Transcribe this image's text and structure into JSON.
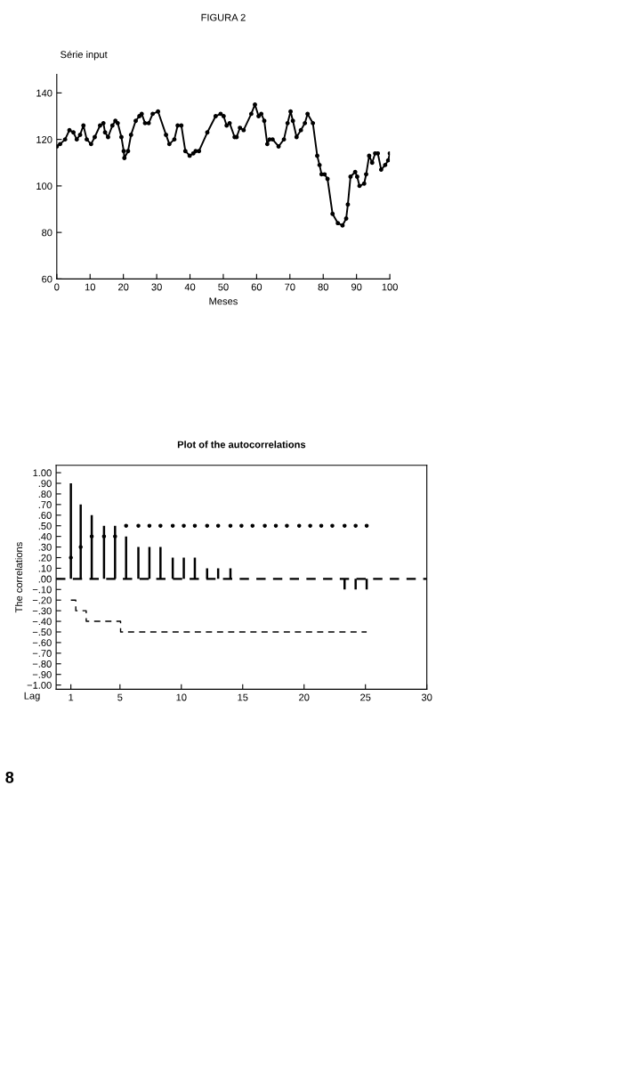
{
  "chart_data": [
    {
      "type": "line",
      "title": "FIGURA 2",
      "ylabel": "Série input",
      "xlabel": "Meses",
      "marker": "circle",
      "line_style": "solid",
      "grid": false,
      "legend": false,
      "xlim": [
        0,
        100
      ],
      "ylim": [
        60,
        148
      ],
      "xticks": [
        0,
        10,
        20,
        30,
        40,
        50,
        60,
        70,
        80,
        90,
        100
      ],
      "yticks": [
        60,
        80,
        100,
        120,
        140
      ],
      "series": [
        {
          "color": "#000000",
          "x": [
            0,
            1,
            2.5,
            3.8,
            5,
            6,
            7,
            8,
            9,
            10.3,
            11.4,
            13,
            14,
            14.5,
            15.4,
            16.7,
            17.6,
            18.3,
            19.4,
            20.1,
            20.3,
            21.4,
            22.3,
            23.7,
            24.8,
            25.5,
            26.5,
            27.6,
            28.8,
            30.4,
            32.8,
            33.8,
            35.3,
            36.3,
            37.4,
            38.6,
            39.9,
            41,
            41.7,
            42.7,
            45.2,
            47.7,
            49.2,
            50.1,
            51,
            51.9,
            53.4,
            54,
            55,
            56.1,
            58.4,
            59.5,
            60.6,
            61.4,
            62.3,
            63.2,
            63.9,
            64.8,
            66.6,
            68.2,
            69.3,
            70.2,
            70.9,
            72,
            73.3,
            74.5,
            75.3,
            76.9,
            78.2,
            78.9,
            79.5,
            80.4,
            81.3,
            82.8,
            84.4,
            85.8,
            86.9,
            87.4,
            88.2,
            89.6,
            90.2,
            90.9,
            92.3,
            92.9,
            93.8,
            94.7,
            95.6,
            96.4,
            97.4,
            98.6,
            99.5,
            100
          ],
          "values": [
            117,
            118,
            120,
            124,
            123,
            120,
            122,
            126,
            120,
            118,
            121,
            126,
            127,
            123,
            121,
            126,
            128,
            127,
            121,
            115,
            112,
            115,
            122,
            128,
            130,
            131,
            127,
            127,
            131,
            132,
            122,
            118,
            120,
            126,
            126,
            115,
            113,
            114,
            115,
            115,
            123,
            130,
            131,
            130,
            126,
            127,
            121,
            121,
            125,
            124,
            131,
            135,
            130,
            131,
            128,
            118,
            120,
            120,
            117,
            120,
            127,
            132,
            128,
            121,
            124,
            127,
            131,
            127,
            113,
            109,
            105,
            105,
            103,
            88,
            84,
            83,
            86,
            92,
            104,
            106,
            104,
            100,
            101,
            105,
            113,
            110,
            114,
            114,
            107,
            109,
            111,
            114
          ]
        }
      ]
    },
    {
      "type": "bar",
      "title": "Plot of the autocorrelations",
      "ylabel": "The correlations",
      "xlabel": "Lag",
      "grid": false,
      "legend": false,
      "xlim": [
        -0.2,
        30
      ],
      "ylim": [
        -1.04,
        1.07
      ],
      "xticks": [
        1,
        5,
        10,
        15,
        20,
        25,
        30
      ],
      "yticks": [
        {
          "value": 1.0,
          "label": "1.00"
        },
        {
          "value": 0.9,
          "label": ".90"
        },
        {
          "value": 0.8,
          "label": ".80"
        },
        {
          "value": 0.7,
          "label": ".70"
        },
        {
          "value": 0.6,
          "label": ".60"
        },
        {
          "value": 0.5,
          "label": ".50"
        },
        {
          "value": 0.4,
          "label": ".40"
        },
        {
          "value": 0.3,
          "label": ".30"
        },
        {
          "value": 0.2,
          "label": ".20"
        },
        {
          "value": 0.1,
          "label": ".10"
        },
        {
          "value": 0.0,
          "label": ".00"
        },
        {
          "value": -0.1,
          "label": "−.10"
        },
        {
          "value": -0.2,
          "label": "−.20"
        },
        {
          "value": -0.3,
          "label": "−.30"
        },
        {
          "value": -0.4,
          "label": "−.40"
        },
        {
          "value": -0.5,
          "label": "−.50"
        },
        {
          "value": -0.6,
          "label": "−.60"
        },
        {
          "value": -0.7,
          "label": "−.70"
        },
        {
          "value": -0.8,
          "label": "−.80"
        },
        {
          "value": -0.9,
          "label": "−.90"
        },
        {
          "value": -1.0,
          "label": "−1.00"
        }
      ],
      "x": [
        1.0,
        1.8,
        2.7,
        3.7,
        4.6,
        5.5,
        6.5,
        7.4,
        8.3,
        9.3,
        10.2,
        11.1,
        12.1,
        13.0,
        14.0,
        14.9,
        15.8,
        16.8,
        17.7,
        18.6,
        19.6,
        20.5,
        21.4,
        22.3,
        23.3,
        24.2,
        25.1
      ],
      "series": [
        {
          "type": "bar",
          "color": "#000000",
          "values": [
            0.9,
            0.7,
            0.6,
            0.5,
            0.5,
            0.4,
            0.3,
            0.3,
            0.3,
            0.2,
            0.2,
            0.2,
            0.1,
            0.1,
            0.1,
            0,
            0,
            0,
            0,
            0,
            0,
            0,
            0,
            0,
            -0.1,
            -0.1,
            -0.1
          ]
        },
        {
          "type": "scatter",
          "color": "#000000",
          "marker": "circle",
          "values": [
            0.2,
            0.3,
            0.4,
            0.4,
            0.4,
            0.5,
            0.5,
            0.5,
            0.5,
            0.5,
            0.5,
            0.5,
            0.5,
            0.5,
            0.5,
            0.5,
            0.5,
            0.5,
            0.5,
            0.5,
            0.5,
            0.5,
            0.5,
            0.5,
            0.5,
            0.5,
            0.5
          ]
        },
        {
          "type": "step",
          "color": "#000000",
          "line_style": "dashed",
          "values": [
            -0.2,
            -0.3,
            -0.4,
            -0.4,
            -0.4,
            -0.5,
            -0.5,
            -0.5,
            -0.5,
            -0.5,
            -0.5,
            -0.5,
            -0.5,
            -0.5,
            -0.5,
            -0.5,
            -0.5,
            -0.5,
            -0.5,
            -0.5,
            -0.5,
            -0.5,
            -0.5,
            -0.5,
            -0.5,
            -0.5,
            -0.5
          ]
        }
      ],
      "ref_lines": [
        {
          "axis": "y",
          "value": 0,
          "color": "#000000",
          "line_style": "dashed"
        }
      ],
      "annotations": [
        "8"
      ]
    }
  ]
}
